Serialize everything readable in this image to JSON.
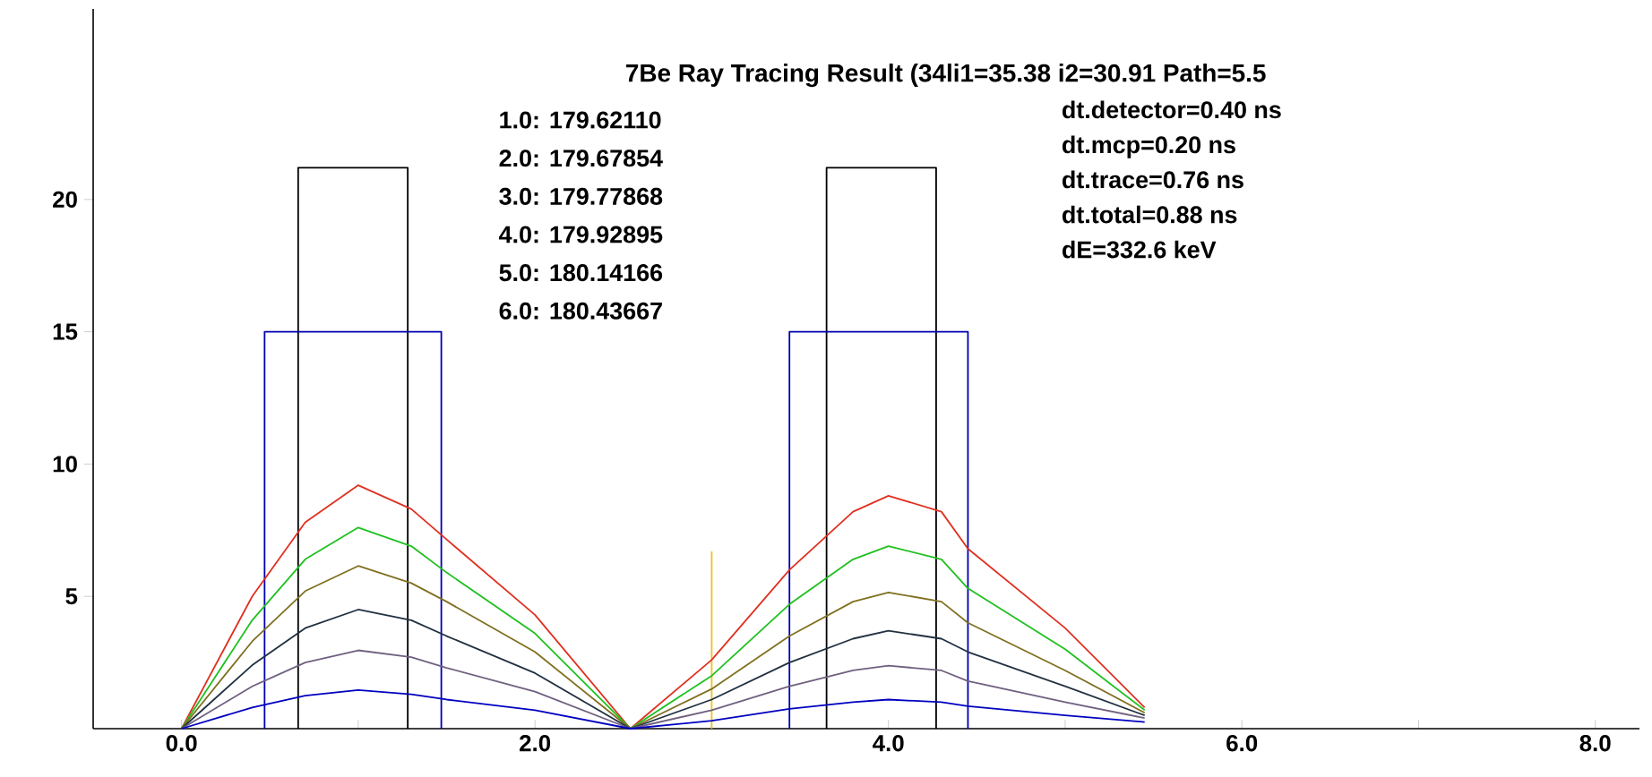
{
  "chart_data": {
    "type": "line",
    "title": "7Be Ray Tracing Result (34li1=35.38  i2=30.91  Path=5.5",
    "annotations": [
      "1.0:  179.62110",
      "2.0:  179.67854",
      "3.0:  179.77868",
      "4.0:  179.92895",
      "5.0:  180.14166",
      "6.0:  180.43667",
      "dt.detector=0.40 ns",
      "dt.mcp=0.20 ns",
      "dt.trace=0.76 ns",
      "dt.total=0.88 ns",
      "dE=332.6 keV"
    ],
    "xlim": [
      -0.5,
      8.25
    ],
    "ylim": [
      0,
      27.2
    ],
    "xticks": [
      {
        "value": 0,
        "label": "0.0"
      },
      {
        "value": 1,
        "label": null
      },
      {
        "value": 2,
        "label": "2.0"
      },
      {
        "value": 3,
        "label": null
      },
      {
        "value": 4,
        "label": "4.0"
      },
      {
        "value": 5,
        "label": null
      },
      {
        "value": 6,
        "label": "6.0"
      },
      {
        "value": 7,
        "label": null
      },
      {
        "value": 8,
        "label": "8.0"
      }
    ],
    "yticks": [
      5,
      10,
      15,
      20
    ],
    "marker": "none",
    "line_style": "solid",
    "series": [
      {
        "color": "#000000",
        "x": [
          0.66,
          0.66,
          1.28,
          1.28,
          2.5,
          3.65,
          3.65,
          4.27,
          4.27
        ],
        "values": [
          0,
          21.2,
          21.2,
          0,
          null,
          0,
          21.2,
          21.2,
          0
        ]
      },
      {
        "color": "#0000b0",
        "x": [
          0.47,
          0.47,
          1.47,
          1.47,
          2.5,
          3.44,
          3.44,
          4.45,
          4.45
        ],
        "values": [
          0,
          15,
          15,
          0,
          null,
          0,
          15,
          15,
          0
        ]
      },
      {
        "color": "#f0c020",
        "x": [
          3.0,
          3.0
        ],
        "values": [
          0,
          6.7
        ]
      },
      {
        "color": "#e03020",
        "x": [
          0,
          0.4,
          0.7,
          1.0,
          1.3,
          1.5,
          2.0,
          2.54,
          3.0,
          3.44,
          3.8,
          4.0,
          4.3,
          4.45,
          5.0,
          5.45
        ],
        "values": [
          0,
          5.0,
          7.8,
          9.2,
          8.3,
          7.15,
          4.3,
          0,
          2.6,
          6.0,
          8.2,
          8.8,
          8.2,
          6.8,
          3.8,
          0.8
        ]
      },
      {
        "color": "#20c020",
        "x": [
          0,
          0.4,
          0.7,
          1.0,
          1.3,
          1.5,
          2.0,
          2.54,
          3.0,
          3.44,
          3.8,
          4.0,
          4.3,
          4.45,
          5.0,
          5.45
        ],
        "values": [
          0,
          4.1,
          6.4,
          7.6,
          6.9,
          5.9,
          3.6,
          0,
          2.0,
          4.7,
          6.4,
          6.9,
          6.4,
          5.3,
          3.0,
          0.7
        ]
      },
      {
        "color": "#807020",
        "x": [
          0,
          0.4,
          0.7,
          1.0,
          1.3,
          1.5,
          2.0,
          2.54,
          3.0,
          3.44,
          3.8,
          4.0,
          4.3,
          4.45,
          5.0,
          5.45
        ],
        "values": [
          0,
          3.3,
          5.2,
          6.15,
          5.5,
          4.8,
          2.9,
          0,
          1.5,
          3.5,
          4.8,
          5.15,
          4.8,
          4.0,
          2.2,
          0.6
        ]
      },
      {
        "color": "#203040",
        "x": [
          0,
          0.4,
          0.7,
          1.0,
          1.3,
          1.5,
          2.0,
          2.54,
          3.0,
          3.44,
          3.8,
          4.0,
          4.3,
          4.45,
          5.0,
          5.45
        ],
        "values": [
          0,
          2.4,
          3.8,
          4.5,
          4.1,
          3.5,
          2.1,
          0,
          1.1,
          2.5,
          3.4,
          3.7,
          3.4,
          2.9,
          1.6,
          0.5
        ]
      },
      {
        "color": "#706080",
        "x": [
          0,
          0.4,
          0.7,
          1.0,
          1.3,
          1.5,
          2.0,
          2.54,
          3.0,
          3.44,
          3.8,
          4.0,
          4.3,
          4.45,
          5.0,
          5.45
        ],
        "values": [
          0,
          1.6,
          2.5,
          2.96,
          2.7,
          2.3,
          1.4,
          0,
          0.7,
          1.6,
          2.2,
          2.38,
          2.2,
          1.8,
          1.0,
          0.4
        ]
      },
      {
        "color": "#0000c0",
        "x": [
          0,
          0.4,
          0.7,
          1.0,
          1.3,
          1.5,
          2.0,
          2.54,
          3.0,
          3.44,
          3.8,
          4.0,
          4.3,
          4.45,
          5.0,
          5.45
        ],
        "values": [
          0,
          0.8,
          1.25,
          1.46,
          1.3,
          1.1,
          0.7,
          0,
          0.3,
          0.75,
          1.0,
          1.1,
          1.0,
          0.85,
          0.5,
          0.25
        ]
      }
    ]
  }
}
